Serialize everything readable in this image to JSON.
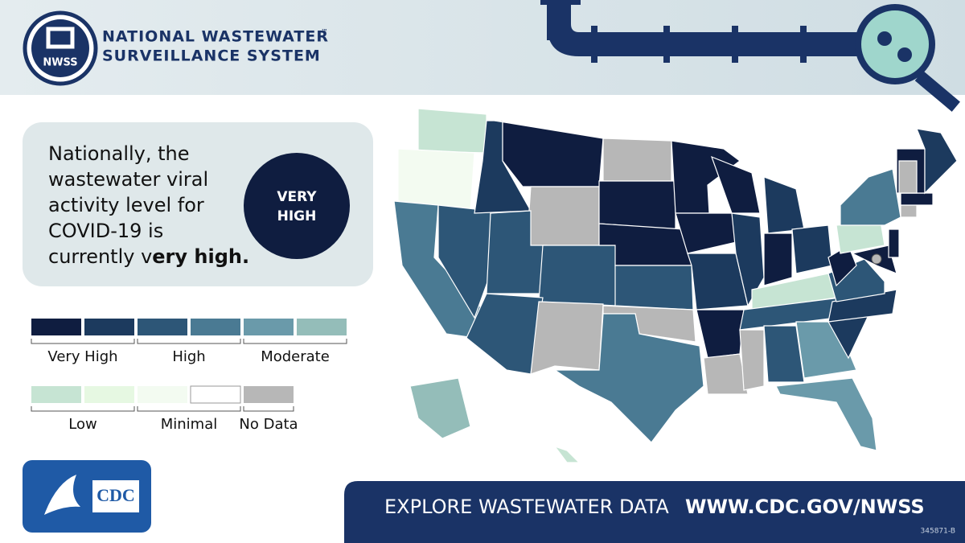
{
  "header": {
    "logo_text": "NWSS",
    "title_line1": "NATIONAL WASTEWATER",
    "trademark": "™",
    "title_line2": "SURVEILLANCE SYSTEM"
  },
  "panel": {
    "lines": [
      "Nationally, the",
      "wastewater viral",
      "activity level for",
      "COVID-19 is"
    ],
    "last_line_regular": "currently v",
    "last_line_bold": "ery high.",
    "badge_line1": "VERY",
    "badge_line2": "HIGH"
  },
  "legend": {
    "row1_colors": [
      "#0f1d40",
      "#1c3a5e",
      "#2d5677",
      "#4a7a93",
      "#6a9aaa",
      "#94bdb9"
    ],
    "row1_labels": [
      "Very High",
      "High",
      "Moderate"
    ],
    "row2_colors": [
      "#c6e4d3",
      "#e6f8e2",
      "#f3fbf1",
      "#ffffff",
      "#b7b7b7"
    ],
    "row2_labels": [
      "Low",
      "Minimal",
      "No Data"
    ]
  },
  "map": {
    "region_colors": [
      "#c6e4d3",
      "#f3fbf1",
      "#4a7a93",
      "#2d5677",
      "#1c3a5e",
      "#0f1d40",
      "#b7b7b7",
      "#2d5677",
      "#2d5677",
      "#2d5677",
      "#b7b7b7",
      "#b7b7b7",
      "#0f1d40",
      "#0f1d40",
      "#2d5677",
      "#b7b7b7",
      "#4a7a93",
      "#0f1d40",
      "#0f1d40",
      "#1c3a5e",
      "#0f1d40",
      "#b7b7b7",
      "#0f1d40",
      "#1c3a5e",
      "#1c3a5e",
      "#0f1d40",
      "#1c3a5e",
      "#c6e4d3",
      "#2d5677",
      "#b7b7b7",
      "#2d5677",
      "#6a9aaa",
      "#6a9aaa",
      "#1c3a5e",
      "#1c3a5e",
      "#2d5677",
      "#0f1d40",
      "#c6e4d3",
      "#4a7a93",
      "#0f1d40",
      "#0f1d40",
      "#b7b7b7",
      "#0f1d40",
      "#0f1d40",
      "#1c3a5e",
      "#94bdb9",
      "#c6e4d3",
      "#b7b7b7"
    ]
  },
  "footer": {
    "cdc_logo": "CDC",
    "cta": "EXPLORE WASTEWATER DATA",
    "url": "WWW.CDC.GOV/NWSS",
    "code": "345871-B"
  }
}
